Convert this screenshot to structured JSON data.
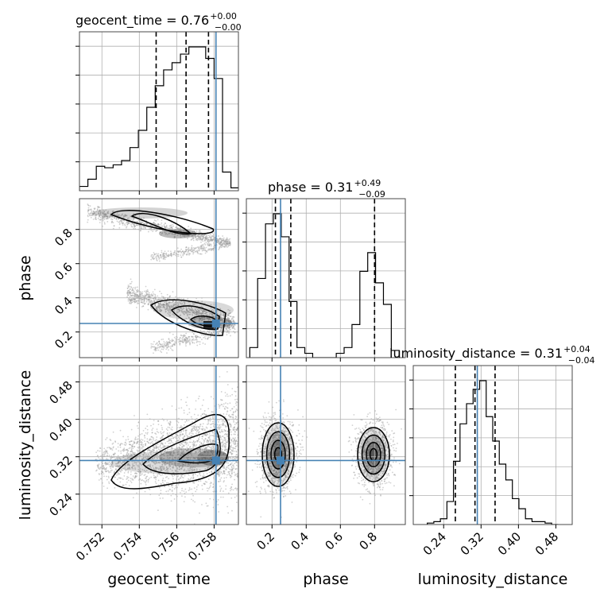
{
  "chart_data": {
    "type": "corner",
    "grid": true,
    "colors": {
      "truth": "#4682b4",
      "hist": "#000000",
      "points": "#9a9a9a",
      "fill_dark": "#3a3a3a",
      "grid": "#b0b0b0"
    },
    "parameters": [
      {
        "name": "geocent_time",
        "axis_label": "geocent_time",
        "range": [
          0.7508,
          0.7593
        ],
        "ticks": [
          0.752,
          0.754,
          0.756,
          0.758
        ],
        "tick_labels": [
          "0.752",
          "0.754",
          "0.756",
          "0.758"
        ],
        "truth": 0.7581,
        "quantiles": [
          0.7549,
          0.7565,
          0.7577
        ]
      },
      {
        "name": "phase",
        "axis_label": "phase",
        "range": [
          0.05,
          0.98
        ],
        "ticks": [
          0.2,
          0.4,
          0.6,
          0.8
        ],
        "tick_labels": [
          "0.2",
          "0.4",
          "0.6",
          "0.8"
        ],
        "truth": 0.25,
        "quantiles": [
          0.22,
          0.31,
          0.8
        ]
      },
      {
        "name": "luminosity_distance",
        "axis_label": "luminosity_distance",
        "range": [
          0.175,
          0.515
        ],
        "ticks": [
          0.24,
          0.32,
          0.4,
          0.48
        ],
        "tick_labels": [
          "0.24",
          "0.32",
          "0.40",
          "0.48"
        ],
        "truth": 0.312,
        "quantiles": [
          0.265,
          0.307,
          0.35
        ]
      }
    ],
    "titles": [
      {
        "main": "geocent_time = 0.76",
        "sup": "+0.00",
        "sub": "−0.00"
      },
      {
        "main": "phase = 0.31",
        "sup": "+0.49",
        "sub": "−0.09"
      },
      {
        "main": "luminosity_distance = 0.31",
        "sup": "+0.04",
        "sub": "−0.04"
      }
    ],
    "histograms": [
      {
        "param": "geocent_time",
        "bins": [
          0.7508,
          0.75125,
          0.7517,
          0.75215,
          0.7526,
          0.75305,
          0.7535,
          0.75395,
          0.7544,
          0.75485,
          0.7553,
          0.75575,
          0.7562,
          0.75665,
          0.7571,
          0.75755,
          0.758,
          0.75845,
          0.7589,
          0.75935
        ],
        "counts": [
          3,
          8,
          17,
          16,
          18,
          21,
          30,
          42,
          58,
          73,
          84,
          89,
          95,
          100,
          100,
          92,
          78,
          13,
          2
        ]
      },
      {
        "param": "phase",
        "bins": [
          0.07,
          0.116,
          0.162,
          0.208,
          0.254,
          0.3,
          0.346,
          0.392,
          0.438,
          0.484,
          0.53,
          0.576,
          0.622,
          0.668,
          0.714,
          0.76,
          0.806,
          0.852,
          0.898,
          0.944
        ],
        "counts": [
          7,
          55,
          93,
          100,
          84,
          39,
          7,
          3,
          0,
          0,
          0,
          3,
          7,
          23,
          60,
          73,
          52,
          37,
          5
        ]
      },
      {
        "param": "luminosity_distance",
        "bins": [
          0.205,
          0.219,
          0.233,
          0.247,
          0.261,
          0.275,
          0.289,
          0.303,
          0.317,
          0.331,
          0.345,
          0.359,
          0.373,
          0.387,
          0.401,
          0.415,
          0.429,
          0.443,
          0.457,
          0.471,
          0.485
        ],
        "counts": [
          1,
          2,
          4,
          16,
          44,
          70,
          84,
          94,
          100,
          75,
          58,
          42,
          31,
          18,
          11,
          4,
          2,
          2,
          1,
          0
        ]
      }
    ]
  }
}
